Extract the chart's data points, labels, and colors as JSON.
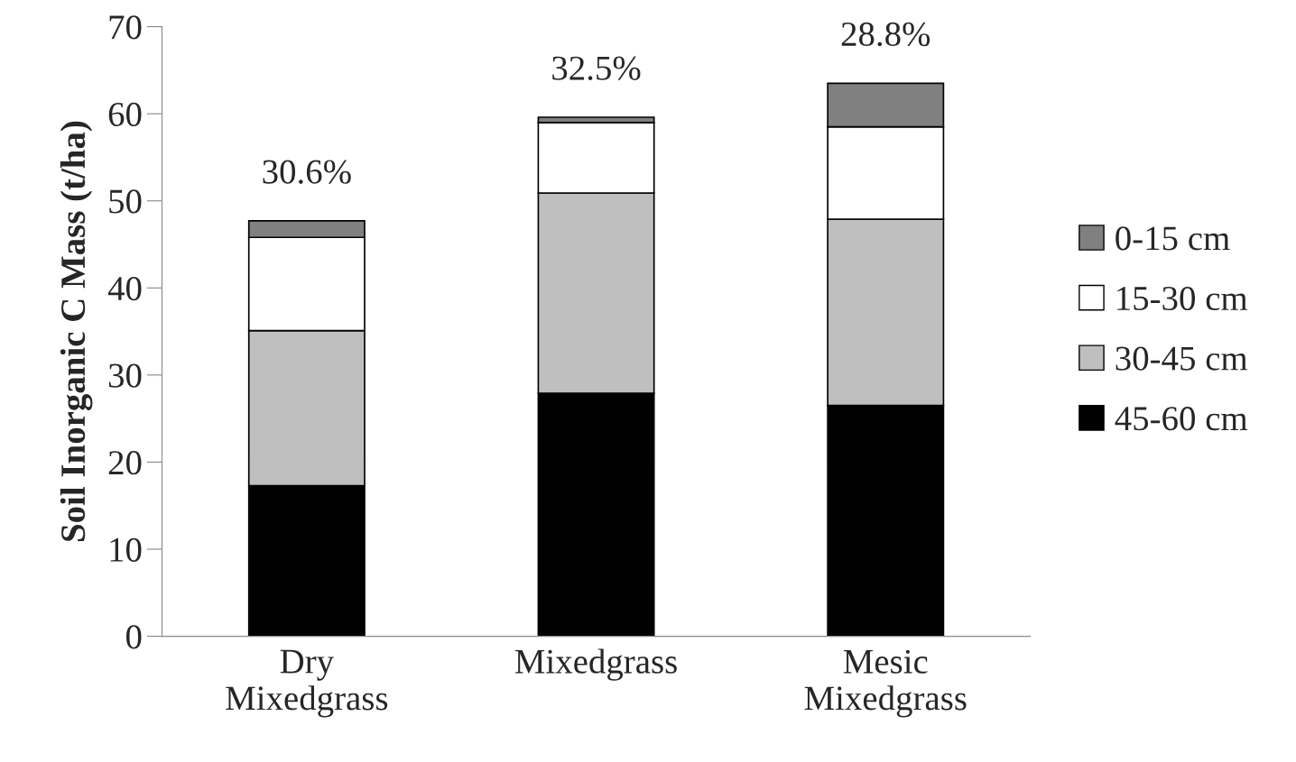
{
  "chart_data": {
    "type": "bar",
    "stacked": true,
    "ylabel": "Soil Inorganic C Mass (t/ha)",
    "categories": [
      "Dry\nMixedgrass",
      "Mixedgrass",
      "Mesic\nMixedgrass"
    ],
    "series": [
      {
        "name": "45-60 cm",
        "color": "#000000",
        "values": [
          17.3,
          27.9,
          26.5
        ]
      },
      {
        "name": "30-45 cm",
        "color": "#bfbfbf",
        "values": [
          17.8,
          23.0,
          21.4
        ]
      },
      {
        "name": "15-30 cm",
        "color": "#ffffff",
        "values": [
          10.7,
          8.1,
          10.6
        ]
      },
      {
        "name": "0-15 cm",
        "color": "#808080",
        "values": [
          1.9,
          0.6,
          5.0
        ]
      }
    ],
    "annotations": [
      {
        "text": "30.6%",
        "x": "Dry\nMixedgrass",
        "y": 47.7
      },
      {
        "text": "32.5%",
        "x": "Mixedgrass",
        "y": 59.6
      },
      {
        "text": "28.8%",
        "x": "Mesic\nMixedgrass",
        "y": 63.5
      }
    ],
    "ylim": [
      0,
      70
    ],
    "yticks": [
      0,
      10,
      20,
      30,
      40,
      50,
      60,
      70
    ],
    "grid": false,
    "legend": "right"
  }
}
